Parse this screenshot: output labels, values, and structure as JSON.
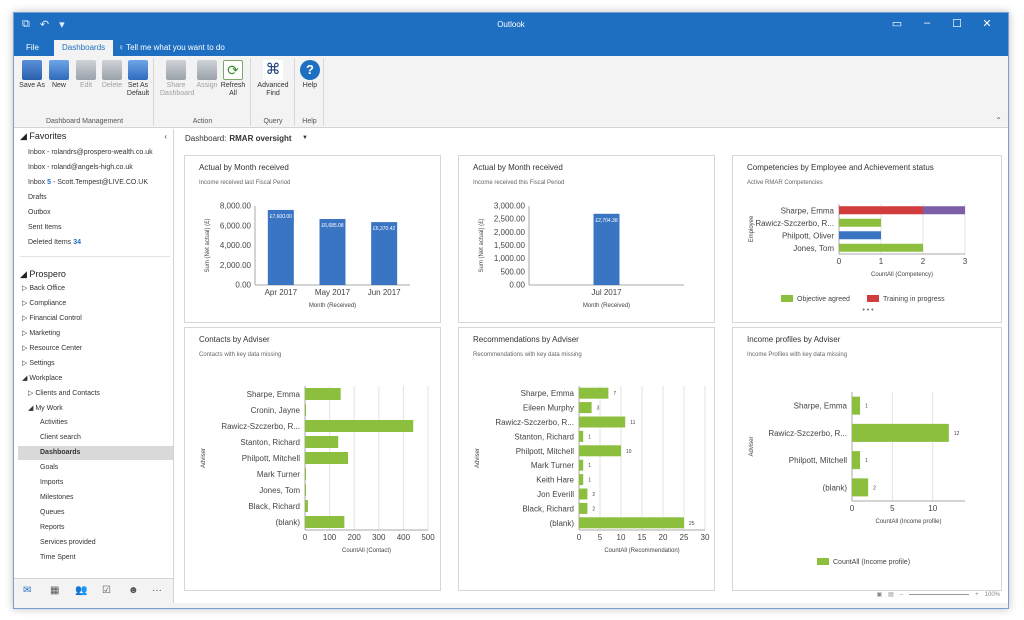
{
  "window": {
    "title": "Outlook"
  },
  "ribbon": {
    "tabs": [
      "File",
      "Dashboards"
    ],
    "tell_me": "Tell me what you want to do",
    "groups": [
      {
        "label": "Dashboard Management",
        "buttons": [
          "Save As",
          "New",
          "Edit",
          "Delete",
          "Set As Default"
        ]
      },
      {
        "label": "Action",
        "buttons": [
          "Share Dashboard",
          "Assign",
          "Refresh All"
        ]
      },
      {
        "label": "Query",
        "buttons": [
          "Advanced Find"
        ]
      },
      {
        "label": "Help",
        "buttons": [
          "Help"
        ]
      }
    ]
  },
  "nav": {
    "favorites_title": "Favorites",
    "favorites": [
      {
        "label": "Inbox - rolandrs@prospero-wealth.co.uk",
        "count": ""
      },
      {
        "label": "Inbox - roland@angels-high.co.uk",
        "count": ""
      },
      {
        "label": "Inbox",
        "count": "5",
        "suffix": "- Scott.Tempest@LIVE.CO.UK"
      },
      {
        "label": "Drafts",
        "count": ""
      },
      {
        "label": "Outbox",
        "count": ""
      },
      {
        "label": "Sent Items",
        "count": ""
      },
      {
        "label": "Deleted Items",
        "count": "34"
      }
    ],
    "prospero_title": "Prospero",
    "prospero_items": [
      "Back Office",
      "Compliance",
      "Financial Control",
      "Marketing",
      "Resource Center",
      "Settings",
      "Workplace"
    ],
    "workplace_items": [
      "Clients and Contacts",
      "My Work"
    ],
    "mywork_items": [
      "Activities",
      "Client search",
      "Dashboards",
      "Goals",
      "Imports",
      "Milestones",
      "Queues",
      "Reports",
      "Services provided",
      "Time Spent"
    ],
    "selected": "Dashboards"
  },
  "dashboard": {
    "label": "Dashboard:",
    "name": "RMAR oversight"
  },
  "panels": {
    "p1": {
      "title": "Actual by Month received",
      "subtitle": "Income received last Fiscal Period"
    },
    "p2": {
      "title": "Actual by Month received",
      "subtitle": "Income received this Fiscal Period"
    },
    "p3": {
      "title": "Competencies by Employee and Achievement status",
      "subtitle": "Active RMAR Competencies"
    },
    "p4": {
      "title": "Contacts by Adviser",
      "subtitle": "Contacts with key data missing"
    },
    "p5": {
      "title": "Recommendations by Adviser",
      "subtitle": "Recommendations with key data missing"
    },
    "p6": {
      "title": "Income profiles by Adviser",
      "subtitle": "Income Profiles with key data missing"
    }
  },
  "chart_data": [
    {
      "type": "bar",
      "title": "Actual by Month received",
      "subtitle": "Income received last Fiscal Period",
      "categories": [
        "Apr 2017",
        "May 2017",
        "Jun 2017"
      ],
      "values": [
        7600,
        6685.08,
        6370.42
      ],
      "data_labels": [
        "£7,600.00",
        "£6,685.08",
        "£6,370.42"
      ],
      "xlabel": "Month (Received)",
      "ylabel": "Sum (Net actual) (£)",
      "yticks": [
        "0.00",
        "2,000.00",
        "4,000.00",
        "6,000.00",
        "8,000.00"
      ],
      "ylim": [
        0,
        8000
      ],
      "color": "#3a75c4"
    },
    {
      "type": "bar",
      "title": "Actual by Month received",
      "subtitle": "Income received this Fiscal Period",
      "categories": [
        "Jul 2017"
      ],
      "values": [
        2704.38
      ],
      "data_labels": [
        "£2,704.38"
      ],
      "xlabel": "Month (Received)",
      "ylabel": "Sum (Net actual) (£)",
      "yticks": [
        "0.00",
        "500.00",
        "1,000.00",
        "1,500.00",
        "2,000.00",
        "2,500.00",
        "3,000.00"
      ],
      "ylim": [
        0,
        3000
      ],
      "color": "#3a75c4"
    },
    {
      "type": "bar",
      "orientation": "horizontal",
      "stacked": true,
      "title": "Competencies by Employee and Achievement status",
      "subtitle": "Active RMAR Competencies",
      "categories": [
        "Sharpe, Emma",
        "Rawicz-Szczerbo, R...",
        "Philpott, Oliver",
        "Jones, Tom"
      ],
      "series": [
        {
          "name": "Objective agreed",
          "values": [
            0,
            1,
            0,
            2
          ],
          "color": "#8dbf3f"
        },
        {
          "name": "Training in progress",
          "values": [
            2,
            0,
            0,
            0
          ],
          "color": "#d13c3c"
        },
        {
          "name": "",
          "values": [
            0,
            0,
            1,
            0
          ],
          "color": "#3a75c4"
        },
        {
          "name": "",
          "values": [
            1,
            0,
            0,
            0
          ],
          "color": "#7b5ea7"
        }
      ],
      "xlabel": "CountAll (Competency)",
      "ylabel": "Employee",
      "xticks": [
        "0",
        "1",
        "2",
        "3"
      ],
      "xlim": [
        0,
        3
      ],
      "legend": "bottom"
    },
    {
      "type": "bar",
      "orientation": "horizontal",
      "title": "Contacts by Adviser",
      "subtitle": "Contacts with key data missing",
      "categories": [
        "Sharpe, Emma",
        "Cronin, Jayne",
        "Rawicz-Szczerbo, R...",
        "Stanton, Richard",
        "Philpott, Mitchell",
        "Mark Turner",
        "Jones, Tom",
        "Black, Richard",
        "(blank)"
      ],
      "values": [
        145,
        3,
        440,
        135,
        175,
        1,
        2,
        12,
        160
      ],
      "xlabel": "CountAll (Contact)",
      "ylabel": "Adviser",
      "xticks": [
        "0",
        "100",
        "200",
        "300",
        "400",
        "500"
      ],
      "xlim": [
        0,
        500
      ],
      "color": "#8dbf3f"
    },
    {
      "type": "bar",
      "orientation": "horizontal",
      "title": "Recommendations by Adviser",
      "subtitle": "Recommendations with key data missing",
      "categories": [
        "Sharpe, Emma",
        "Eileen Murphy",
        "Rawicz-Szczerbo, R...",
        "Stanton, Richard",
        "Philpott, Mitchell",
        "Mark Turner",
        "Keith Hare",
        "Jon Everill",
        "Black, Richard",
        "(blank)"
      ],
      "values": [
        7,
        3,
        11,
        1,
        10,
        1,
        1,
        2,
        2,
        25
      ],
      "xlabel": "CountAll (Recommendation)",
      "ylabel": "Adviser",
      "xticks": [
        "0",
        "5",
        "10",
        "15",
        "20",
        "25",
        "30"
      ],
      "xlim": [
        0,
        30
      ],
      "color": "#8dbf3f"
    },
    {
      "type": "bar",
      "orientation": "horizontal",
      "title": "Income profiles by Adviser",
      "subtitle": "Income Profiles with key data missing",
      "categories": [
        "Sharpe, Emma",
        "Rawicz-Szczerbo, R...",
        "Philpott, Mitchell",
        "(blank)"
      ],
      "values": [
        1,
        12,
        1,
        2
      ],
      "series_name": "CountAll (Income profile)",
      "xlabel": "CountAll (Income profile)",
      "ylabel": "Adviser",
      "xticks": [
        "0",
        "5",
        "10"
      ],
      "xlim": [
        0,
        14
      ],
      "color": "#8dbf3f",
      "legend": "bottom"
    }
  ],
  "statusbar": {
    "zoom": "100%"
  }
}
